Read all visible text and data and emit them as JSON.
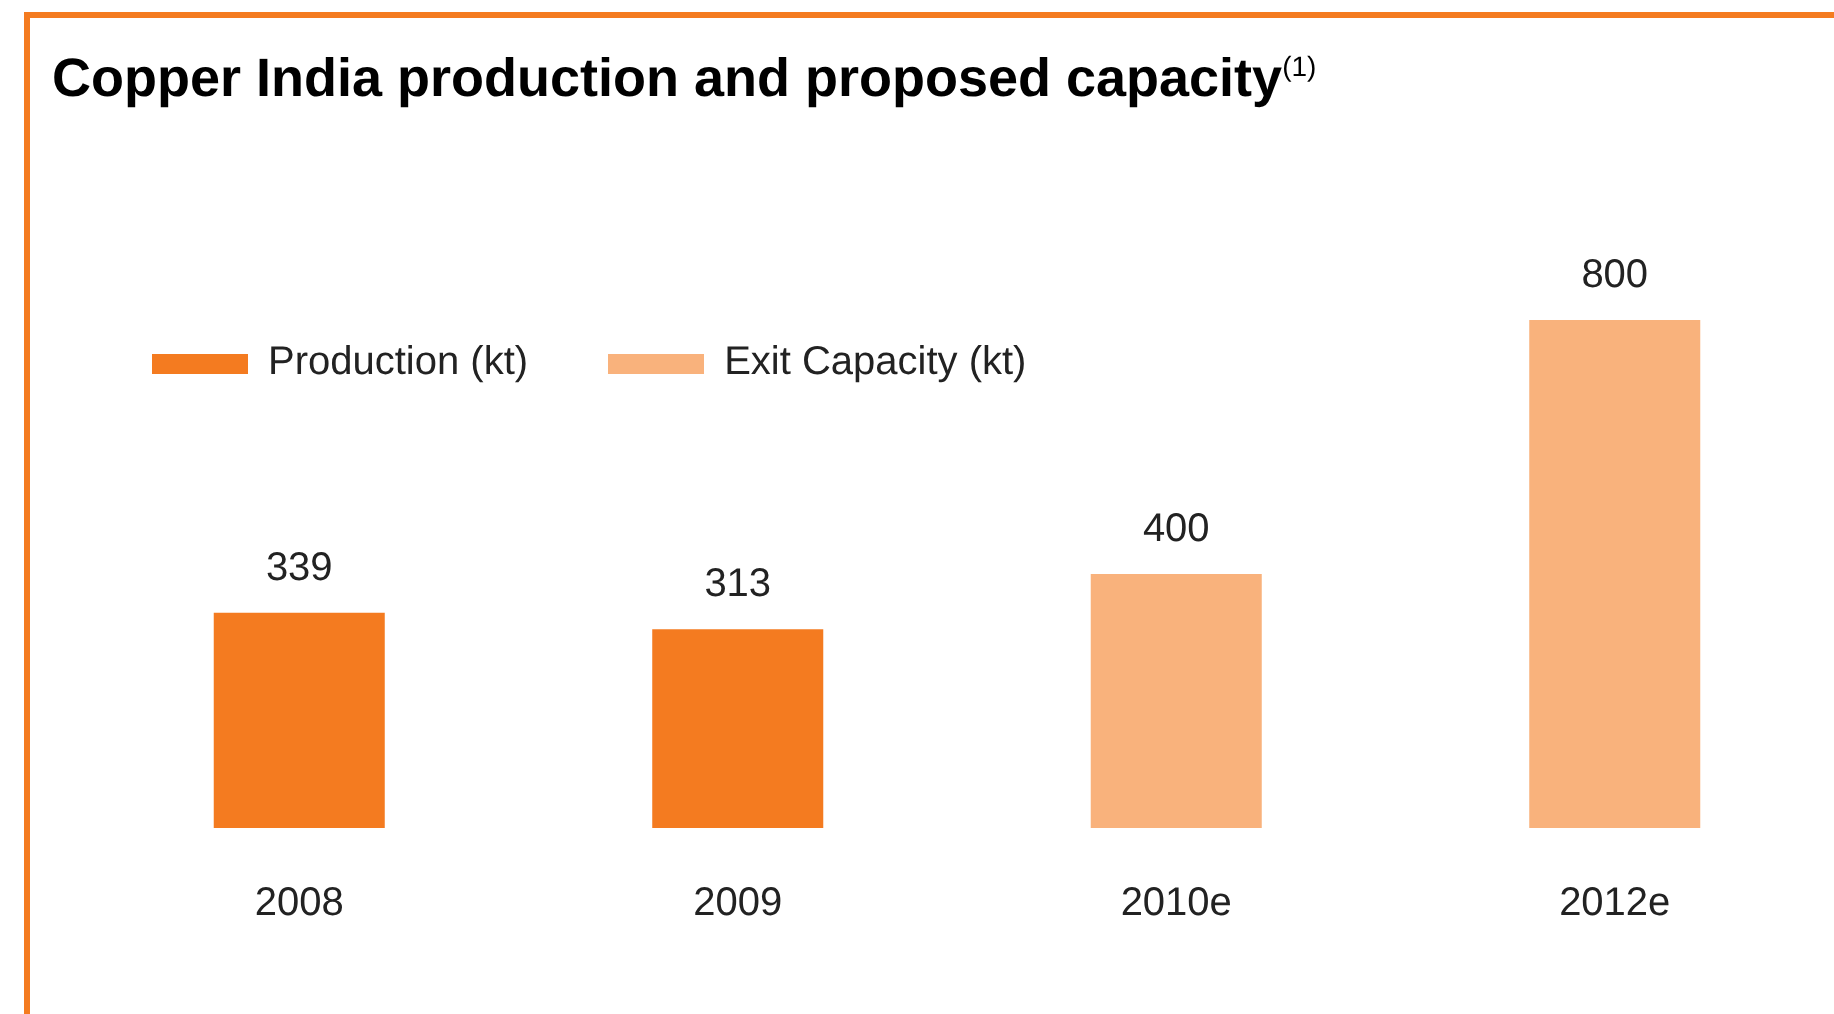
{
  "chart_data": {
    "type": "bar",
    "title": "Copper India production and proposed capacity$^{(1)}$",
    "categories": [
      "2008",
      "2009",
      "2010e",
      "2012e"
    ],
    "series": [
      {
        "name": "Production (kt)",
        "color": "#f47b20",
        "values": [
          339,
          313,
          null,
          null
        ]
      },
      {
        "name": "Exit Capacity (kt)",
        "color": "#f9b27c",
        "values": [
          null,
          null,
          400,
          800
        ]
      }
    ],
    "data_labels": true,
    "grid": false,
    "legend": "top left",
    "tick_labels": "x"
  }
}
